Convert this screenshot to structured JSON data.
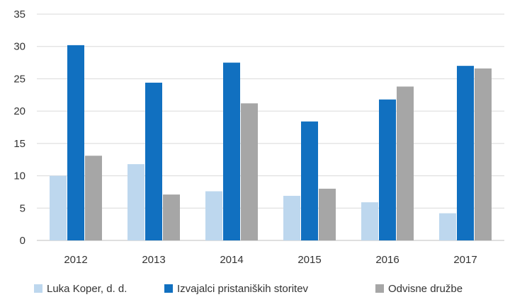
{
  "chart_data": {
    "type": "bar",
    "categories": [
      "2012",
      "2013",
      "2014",
      "2015",
      "2016",
      "2017"
    ],
    "series": [
      {
        "name": "Luka Koper, d. d.",
        "color": "#bdd7ee",
        "values": [
          10.0,
          11.8,
          7.6,
          6.9,
          5.9,
          4.2
        ]
      },
      {
        "name": "Izvajalci pristaniških storitev",
        "color": "#1170c0",
        "values": [
          30.2,
          24.4,
          27.5,
          18.4,
          21.8,
          27.0
        ]
      },
      {
        "name": "Odvisne družbe",
        "color": "#a6a6a6",
        "values": [
          13.1,
          7.1,
          21.2,
          8.0,
          23.8,
          26.6
        ]
      }
    ],
    "yticks": [
      "0",
      "5",
      "10",
      "15",
      "20",
      "25",
      "30",
      "35"
    ],
    "ylim": [
      0,
      35
    ],
    "grid": true,
    "legend_position": "bottom",
    "title": "",
    "xlabel": "",
    "ylabel": ""
  }
}
